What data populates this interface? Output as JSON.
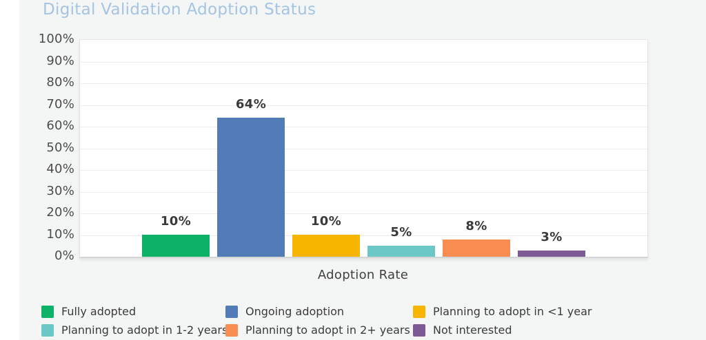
{
  "title": "Digital Validation Adoption Status",
  "chart_data": {
    "type": "bar",
    "title": "Digital Validation Adoption Status",
    "xlabel": "Adoption Rate",
    "ylabel": "",
    "ylim": [
      0,
      100
    ],
    "ytick_step": 10,
    "ytick_suffix": "%",
    "grid": true,
    "legend_position": "bottom",
    "categories": [
      "Fully adopted",
      "Ongoing adoption",
      "Planning to adopt in <1 year",
      "Planning to adopt in 1-2 years",
      "Planning to adopt in 2+ years",
      "Not interested"
    ],
    "values": [
      10,
      64,
      10,
      5,
      8,
      3
    ],
    "data_labels": [
      "10%",
      "64%",
      "10%",
      "5%",
      "8%",
      "3%"
    ],
    "colors": [
      "#0cb267",
      "#527cb7",
      "#f8b500",
      "#6bc8c6",
      "#f98c50",
      "#7d5a96"
    ]
  },
  "colors": {
    "title": "#a5c4e2",
    "axis_text": "#4c4c4c",
    "data_label_text": "#3a3a3a",
    "background": "#f4f6f5",
    "plot_background": "#ffffff",
    "gridline": "#ededed"
  }
}
